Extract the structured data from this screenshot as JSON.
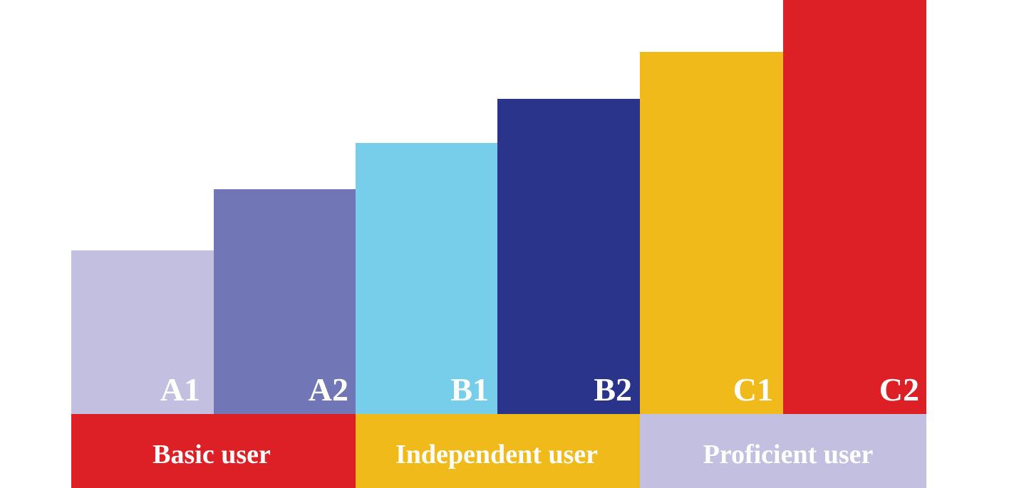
{
  "levels": [
    "A1",
    "A2",
    "B1",
    "B2",
    "C1",
    "C2"
  ],
  "groups": [
    "Basic user",
    "Independent user",
    "Proficient user"
  ]
}
